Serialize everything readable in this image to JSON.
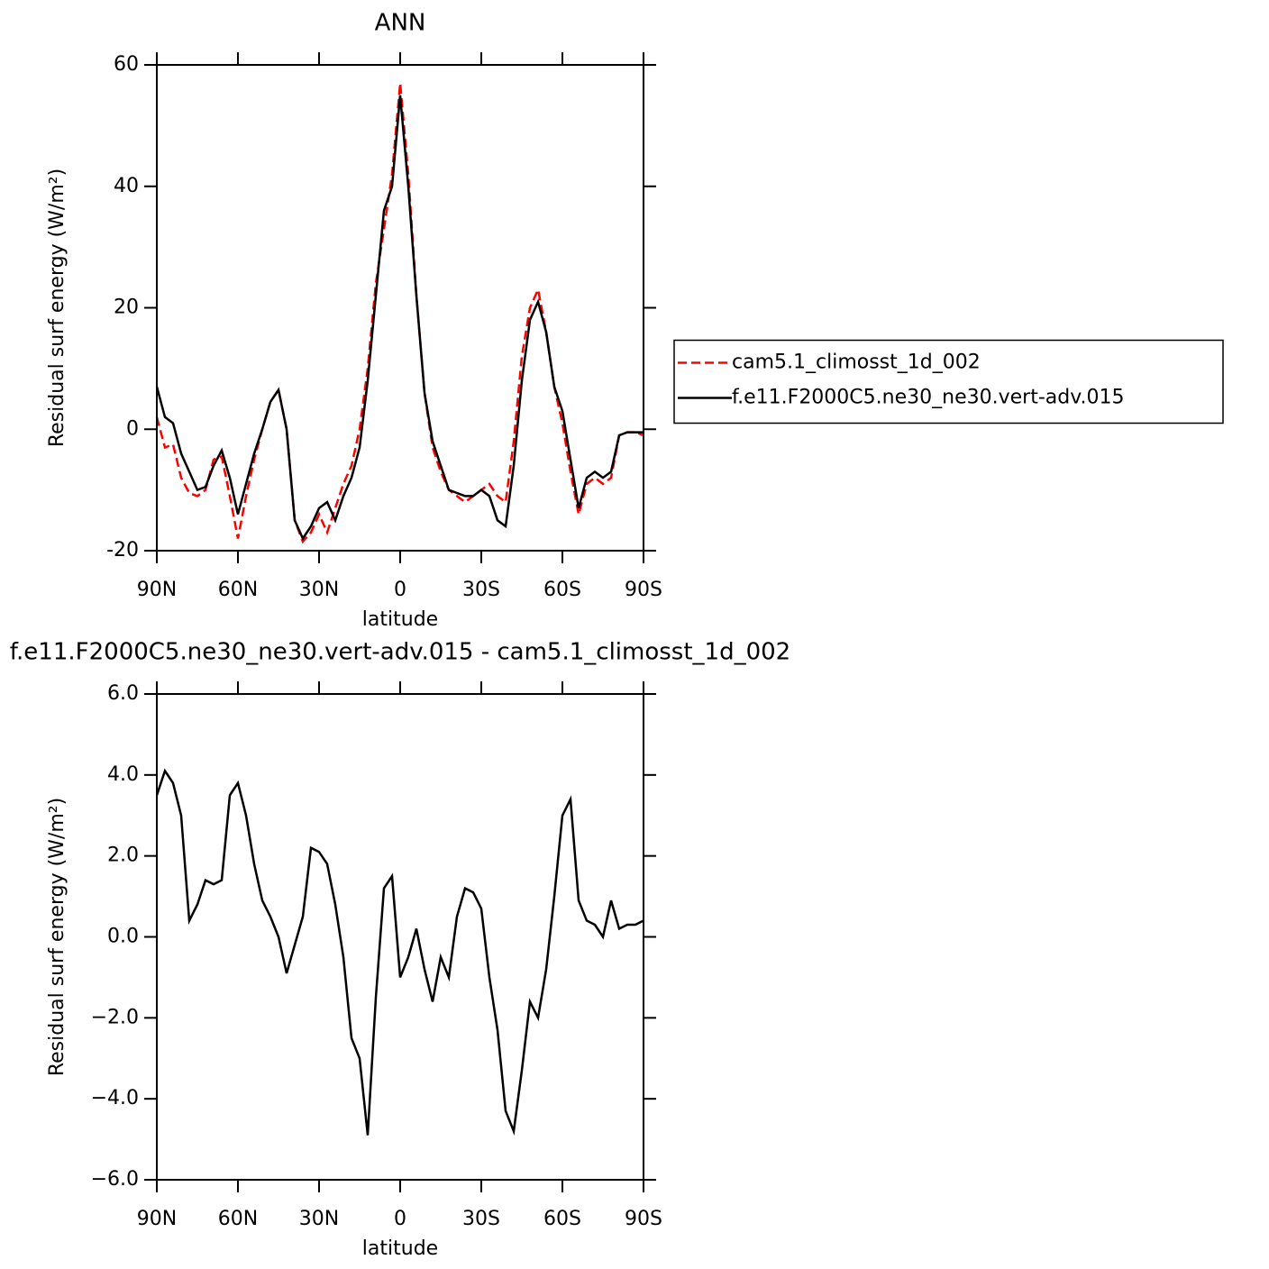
{
  "chart_data": [
    {
      "type": "line",
      "title": "ANN",
      "xlabel": "latitude",
      "ylabel": "Residual surf energy (W/m²)",
      "x": [
        90,
        87,
        84,
        81,
        78,
        75,
        72,
        69,
        66,
        63,
        60,
        57,
        54,
        51,
        48,
        45,
        42,
        39,
        36,
        33,
        30,
        27,
        24,
        21,
        18,
        15,
        12,
        9,
        6,
        3,
        0,
        -3,
        -6,
        -9,
        -12,
        -15,
        -18,
        -21,
        -24,
        -27,
        -30,
        -33,
        -36,
        -39,
        -42,
        -45,
        -48,
        -51,
        -54,
        -57,
        -60,
        -63,
        -66,
        -69,
        -72,
        -75,
        -78,
        -81,
        -84,
        -87,
        -90
      ],
      "series": [
        {
          "name": "cam5.1_climosst_1d_002",
          "color": "#ff0000",
          "line_style": "dashed",
          "values": [
            2,
            -3,
            -2.5,
            -8,
            -10.5,
            -11,
            -10,
            -5,
            -4.5,
            -11,
            -18,
            -11,
            -5,
            0,
            4.5,
            6.5,
            0,
            -15,
            -18.5,
            -17,
            -14,
            -17,
            -13,
            -9,
            -6,
            0,
            10,
            24,
            33,
            42,
            57,
            42,
            22,
            6,
            -3,
            -7,
            -10,
            -11,
            -12,
            -11,
            -10,
            -9,
            -11,
            -12,
            -2,
            12,
            20,
            23,
            16,
            7,
            1,
            -7,
            -14,
            -9,
            -8,
            -9,
            -8,
            -1,
            -0.5,
            -0.5,
            -1
          ]
        },
        {
          "name": "f.e11.F2000C5.ne30_ne30.vert-adv.015",
          "color": "#000000",
          "line_style": "solid",
          "values": [
            7,
            2,
            1,
            -4,
            -7,
            -10,
            -9.5,
            -6,
            -3.5,
            -8,
            -14,
            -9,
            -4,
            0,
            4.5,
            6.5,
            0,
            -15,
            -18,
            -16,
            -13,
            -12,
            -15,
            -11,
            -8,
            -3,
            8,
            22,
            36,
            40,
            55,
            40,
            22,
            6,
            -2,
            -6,
            -10,
            -10.5,
            -11,
            -11,
            -10,
            -11,
            -15,
            -16,
            -6,
            8,
            18,
            21,
            16,
            7,
            3,
            -5,
            -13,
            -8,
            -7,
            -8,
            -7,
            -1,
            -0.5,
            -0.5,
            -0.5
          ]
        }
      ],
      "xlim": [
        90,
        -90
      ],
      "xticks": [
        {
          "value": 90,
          "label": "90N"
        },
        {
          "value": 60,
          "label": "60N"
        },
        {
          "value": 30,
          "label": "30N"
        },
        0,
        {
          "value": -30,
          "label": "30S"
        },
        {
          "value": -60,
          "label": "60S"
        },
        {
          "value": -90,
          "label": "90S"
        }
      ],
      "ylim": [
        -20,
        60
      ],
      "yticks": [
        -20,
        0,
        20,
        40,
        60
      ],
      "legend": "right"
    },
    {
      "type": "line",
      "title": "f.e11.F2000C5.ne30_ne30.vert-adv.015 - cam5.1_climosst_1d_002",
      "xlabel": "latitude",
      "ylabel": "Residual surf energy (W/m²)",
      "x": [
        90,
        87,
        84,
        81,
        78,
        75,
        72,
        69,
        66,
        63,
        60,
        57,
        54,
        51,
        48,
        45,
        42,
        39,
        36,
        33,
        30,
        27,
        24,
        21,
        18,
        15,
        12,
        9,
        6,
        3,
        0,
        -3,
        -6,
        -9,
        -12,
        -15,
        -18,
        -21,
        -24,
        -27,
        -30,
        -33,
        -36,
        -39,
        -42,
        -45,
        -48,
        -51,
        -54,
        -57,
        -60,
        -63,
        -66,
        -69,
        -72,
        -75,
        -78,
        -81,
        -84,
        -87,
        -90
      ],
      "color": "#000000",
      "values": [
        3.5,
        4.1,
        3.8,
        3.0,
        0.4,
        0.8,
        1.4,
        1.3,
        1.4,
        3.5,
        3.8,
        3.0,
        1.8,
        0.9,
        0.5,
        0.0,
        -0.9,
        -0.2,
        0.5,
        2.2,
        2.1,
        1.8,
        0.8,
        -0.5,
        -2.5,
        -3.0,
        -4.9,
        -1.5,
        1.2,
        1.5,
        -1.0,
        -0.5,
        0.2,
        -0.8,
        -1.6,
        -0.5,
        -1.0,
        0.5,
        1.2,
        1.1,
        0.7,
        -1.0,
        -2.3,
        -4.3,
        -4.8,
        -3.3,
        -1.6,
        -2.0,
        -0.8,
        1.0,
        3.0,
        3.4,
        0.9,
        0.4,
        0.3,
        0.0,
        0.9,
        0.2,
        0.3,
        0.3,
        0.4
      ],
      "xlim": [
        90,
        -90
      ],
      "xticks": [
        {
          "value": 90,
          "label": "90N"
        },
        {
          "value": 60,
          "label": "60N"
        },
        {
          "value": 30,
          "label": "30N"
        },
        0,
        {
          "value": -30,
          "label": "30S"
        },
        {
          "value": -60,
          "label": "60S"
        },
        {
          "value": -90,
          "label": "90S"
        }
      ],
      "ylim": [
        -6,
        6
      ],
      "yticks": [
        {
          "value": -6,
          "label": "−6.0"
        },
        {
          "value": -4,
          "label": "−4.0"
        },
        {
          "value": -2,
          "label": "−2.0"
        },
        {
          "value": 0,
          "label": "0.0"
        },
        {
          "value": 2,
          "label": "2.0"
        },
        {
          "value": 4,
          "label": "4.0"
        },
        {
          "value": 6,
          "label": "6.0"
        }
      ]
    }
  ]
}
